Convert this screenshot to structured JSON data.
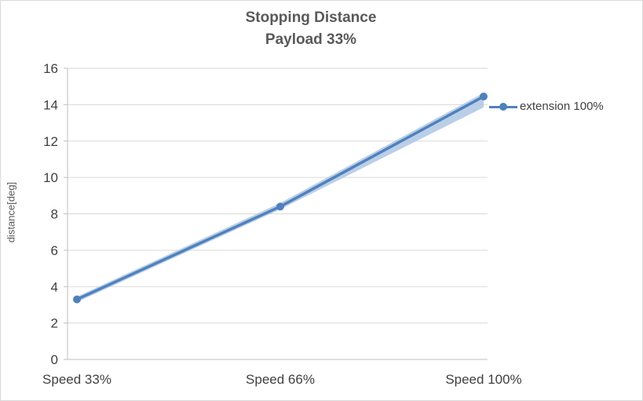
{
  "chart_data": {
    "type": "line",
    "title": "Stopping Distance",
    "subtitle": "Payload 33%",
    "ylabel": "distance[deg]",
    "xlabel": "",
    "categories": [
      "Speed 33%",
      "Speed 66%",
      "Speed 100%"
    ],
    "series": [
      {
        "name": "extension 100%",
        "values": [
          3.3,
          8.4,
          14.45
        ],
        "color": "#4f81bd",
        "marker": "circle"
      }
    ],
    "confidence_band": {
      "low": [
        3.15,
        8.25,
        13.85
      ],
      "high": [
        3.45,
        8.6,
        14.65
      ],
      "color": "#aec7e3"
    },
    "ylim": [
      0,
      16
    ],
    "yticks": [
      "0",
      "2",
      "4",
      "6",
      "8",
      "10",
      "12",
      "14",
      "16"
    ],
    "ytick_step": 2,
    "grid": true,
    "legend_position": "right"
  },
  "colors": {
    "gridline": "#d9d9d9",
    "axis": "#bfbfbf",
    "tick_text": "#404040",
    "title_text": "#595959",
    "series_line": "#4f81bd",
    "band_fill": "#aec7e3"
  }
}
